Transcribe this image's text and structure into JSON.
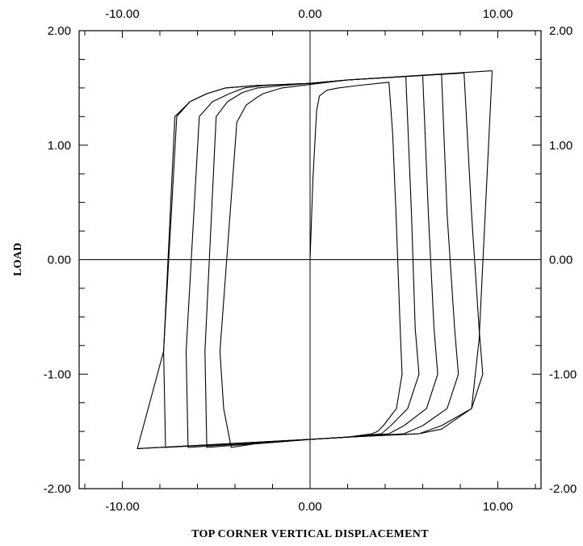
{
  "chart_data": {
    "type": "line",
    "title": "",
    "xlabel": "TOP CORNER VERTICAL DISPLACEMENT",
    "ylabel": "LOAD",
    "xlim": [
      -12.3,
      12.3
    ],
    "ylim": [
      -2.0,
      2.0
    ],
    "x_ticks": [
      -10,
      0,
      10
    ],
    "x_tick_labels": [
      "-10.00",
      "0.00",
      "10.00"
    ],
    "y_ticks": [
      -2,
      -1,
      0,
      1,
      2
    ],
    "y_tick_labels": [
      "-2.00",
      "-1.00",
      "0.00",
      "1.00",
      "2.00"
    ],
    "top_axis_tick_labels": [
      "-10.00",
      "0.00",
      "10.00"
    ],
    "right_axis_tick_labels": [
      "-2.00",
      "-1.00",
      "0.00",
      "1.00",
      "2.00"
    ],
    "zero_lines": true,
    "grid": false,
    "legend": "none",
    "line_color": "#000000",
    "series": [
      {
        "x": [
          0.0,
          0.15,
          0.35,
          0.5,
          0.9,
          1.5,
          2.5,
          4.2,
          4.4,
          4.6,
          4.8,
          4.9,
          4.6,
          3.9,
          3.6,
          3.3,
          2.0,
          0.0,
          -3.0,
          -4.2,
          -4.6,
          -4.8,
          -3.9,
          -3.4,
          -2.8,
          -2.5,
          -1.5,
          0.0,
          2.0,
          5.1
        ],
        "y": [
          0.0,
          0.7,
          1.3,
          1.43,
          1.48,
          1.5,
          1.52,
          1.55,
          1.1,
          0.3,
          -0.6,
          -1.0,
          -1.3,
          -1.45,
          -1.5,
          -1.52,
          -1.55,
          -1.57,
          -1.61,
          -1.64,
          -1.3,
          -0.8,
          1.2,
          1.35,
          1.42,
          1.45,
          1.5,
          1.53,
          1.57,
          1.6
        ]
      },
      {
        "x": [
          5.1,
          5.4,
          5.6,
          5.8,
          5.2,
          4.3,
          3.8,
          2.0,
          0.0,
          -5.5,
          -5.6,
          -5.0,
          -4.4,
          -3.6,
          -2.8,
          -1.5,
          0.0,
          2.0,
          6.0
        ],
        "y": [
          1.6,
          0.4,
          -0.6,
          -1.0,
          -1.3,
          -1.45,
          -1.52,
          -1.55,
          -1.57,
          -1.64,
          -0.8,
          1.25,
          1.38,
          1.46,
          1.5,
          1.52,
          1.54,
          1.57,
          1.61
        ]
      },
      {
        "x": [
          6.0,
          6.3,
          6.6,
          6.8,
          6.2,
          5.0,
          4.2,
          2.0,
          0.0,
          -6.5,
          -6.6,
          -5.9,
          -5.2,
          -4.3,
          -3.5,
          -2.5,
          0.0,
          2.0,
          7.0
        ],
        "y": [
          1.61,
          0.4,
          -0.6,
          -1.0,
          -1.3,
          -1.45,
          -1.52,
          -1.55,
          -1.57,
          -1.64,
          -0.8,
          1.25,
          1.38,
          1.45,
          1.5,
          1.52,
          1.54,
          1.57,
          1.62
        ]
      },
      {
        "x": [
          7.0,
          7.3,
          7.7,
          7.9,
          7.3,
          6.0,
          5.0,
          2.0,
          0.0,
          -7.7,
          -7.8,
          -7.1,
          -6.4,
          -5.5,
          -4.5,
          -3.0,
          0.0,
          2.0,
          8.2
        ],
        "y": [
          1.62,
          0.4,
          -0.6,
          -1.0,
          -1.3,
          -1.45,
          -1.52,
          -1.55,
          -1.57,
          -1.64,
          -0.8,
          1.25,
          1.38,
          1.45,
          1.5,
          1.52,
          1.54,
          1.57,
          1.63
        ]
      },
      {
        "x": [
          8.2,
          8.6,
          9.0,
          9.2,
          8.6,
          7.0,
          5.8,
          2.0,
          0.0,
          -9.2,
          -7.8,
          -7.2,
          -6.4,
          -5.5,
          -4.5,
          -3.0,
          0.0,
          2.0,
          9.7
        ],
        "y": [
          1.63,
          0.4,
          -0.6,
          -1.0,
          -1.3,
          -1.45,
          -1.52,
          -1.55,
          -1.57,
          -1.65,
          -0.8,
          1.25,
          1.38,
          1.45,
          1.5,
          1.52,
          1.54,
          1.57,
          1.65
        ]
      },
      {
        "x": [
          9.7,
          9.3,
          9.0,
          8.6,
          7.0,
          5.8,
          2.0,
          0.0,
          -9.2
        ],
        "y": [
          1.65,
          0.3,
          -0.7,
          -1.3,
          -1.48,
          -1.52,
          -1.55,
          -1.57,
          -1.65
        ]
      }
    ]
  }
}
